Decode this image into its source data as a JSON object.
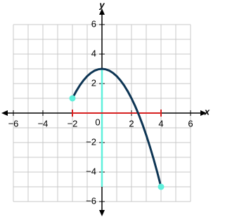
{
  "chart_data": {
    "type": "line",
    "x_label": "x",
    "y_label": "y",
    "xlim": [
      -6,
      6
    ],
    "ylim": [
      -6,
      6
    ],
    "grid_step": 1,
    "xticks": [
      {
        "value": -6,
        "label": "−6"
      },
      {
        "value": -4,
        "label": "−4"
      },
      {
        "value": -2,
        "label": "−2"
      },
      2,
      4,
      6
    ],
    "yticks": [
      {
        "value": -6,
        "label": "−6"
      },
      {
        "value": -4,
        "label": "−4"
      },
      {
        "value": -2,
        "label": "−2"
      },
      2,
      4,
      6
    ],
    "origin_label": "0",
    "series": [
      {
        "color": "#0d3554",
        "x": [
          -2,
          -1.75,
          -1.5,
          -1.25,
          -1,
          -0.75,
          -0.5,
          -0.25,
          0,
          0.25,
          0.5,
          0.75,
          1,
          1.25,
          1.5,
          1.75,
          2,
          2.25,
          2.5,
          2.75,
          3,
          3.25,
          3.5,
          3.75,
          4
        ],
        "values": [
          1,
          1.46875,
          1.875,
          2.21875,
          2.5,
          2.71875,
          2.875,
          2.96875,
          3,
          2.96875,
          2.875,
          2.71875,
          2.5,
          2.21875,
          1.875,
          1.46875,
          1,
          0.46875,
          -0.125,
          -0.78125,
          -1.5,
          -2.28125,
          -3.125,
          -4.03125,
          -5
        ]
      }
    ],
    "endpoints": {
      "color": "#60f0dc",
      "x": [
        -2,
        4
      ],
      "values": [
        1,
        -5
      ]
    },
    "domain": {
      "color": "#d62020",
      "values": [
        -2,
        4
      ]
    },
    "range": {
      "color": "#60f0dc",
      "values": [
        -5,
        3
      ]
    }
  }
}
